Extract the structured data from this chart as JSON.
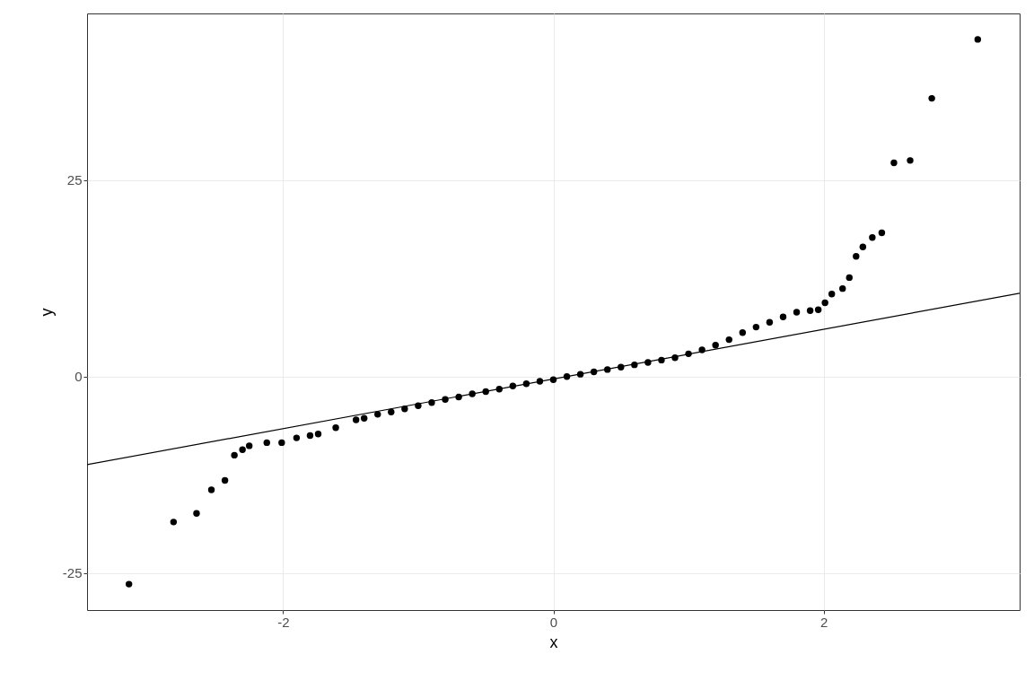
{
  "chart_data": {
    "type": "scatter",
    "xlabel": "x",
    "ylabel": "y",
    "xlim": [
      -3.45,
      3.45
    ],
    "ylim": [
      -29.7,
      46.2
    ],
    "xticks": [
      -2,
      0,
      2
    ],
    "yticks": [
      -25,
      0,
      25
    ],
    "grid": true,
    "series": [
      {
        "marker": "circle",
        "color": "#000000",
        "x": [
          -3.14,
          -2.81,
          -2.64,
          -2.53,
          -2.43,
          -2.36,
          -2.3,
          -2.25,
          -2.12,
          -2.01,
          -1.9,
          -1.8,
          -1.74,
          -1.61,
          -1.46,
          -1.4,
          -1.3,
          -1.2,
          -1.1,
          -1.0,
          -0.9,
          -0.8,
          -0.7,
          -0.6,
          -0.5,
          -0.4,
          -0.3,
          -0.2,
          -0.1,
          0.0,
          0.1,
          0.2,
          0.3,
          0.4,
          0.5,
          0.6,
          0.7,
          0.8,
          0.9,
          1.0,
          1.1,
          1.2,
          1.3,
          1.4,
          1.5,
          1.6,
          1.7,
          1.8,
          1.9,
          1.96,
          2.01,
          2.06,
          2.14,
          2.19,
          2.24,
          2.29,
          2.36,
          2.43,
          2.52,
          2.64,
          2.8,
          3.14
        ],
        "values": [
          -26.4,
          -18.5,
          -17.4,
          -14.4,
          -13.2,
          -10.0,
          -9.3,
          -8.8,
          -8.4,
          -8.4,
          -7.8,
          -7.5,
          -7.3,
          -6.5,
          -5.5,
          -5.3,
          -4.8,
          -4.5,
          -4.1,
          -3.7,
          -3.3,
          -2.9,
          -2.6,
          -2.2,
          -1.9,
          -1.6,
          -1.2,
          -0.9,
          -0.6,
          -0.4,
          0.0,
          0.3,
          0.6,
          0.9,
          1.2,
          1.5,
          1.8,
          2.1,
          2.4,
          2.9,
          3.4,
          4.0,
          4.7,
          5.6,
          6.3,
          6.9,
          7.6,
          8.2,
          8.4,
          8.5,
          9.4,
          10.5,
          11.2,
          12.6,
          15.3,
          16.5,
          17.7,
          18.3,
          27.2,
          27.5,
          35.4,
          42.9
        ]
      },
      {
        "type": "line",
        "color": "#000000",
        "x": [
          -3.45,
          3.45
        ],
        "values": [
          -11.2,
          10.6
        ]
      }
    ]
  }
}
